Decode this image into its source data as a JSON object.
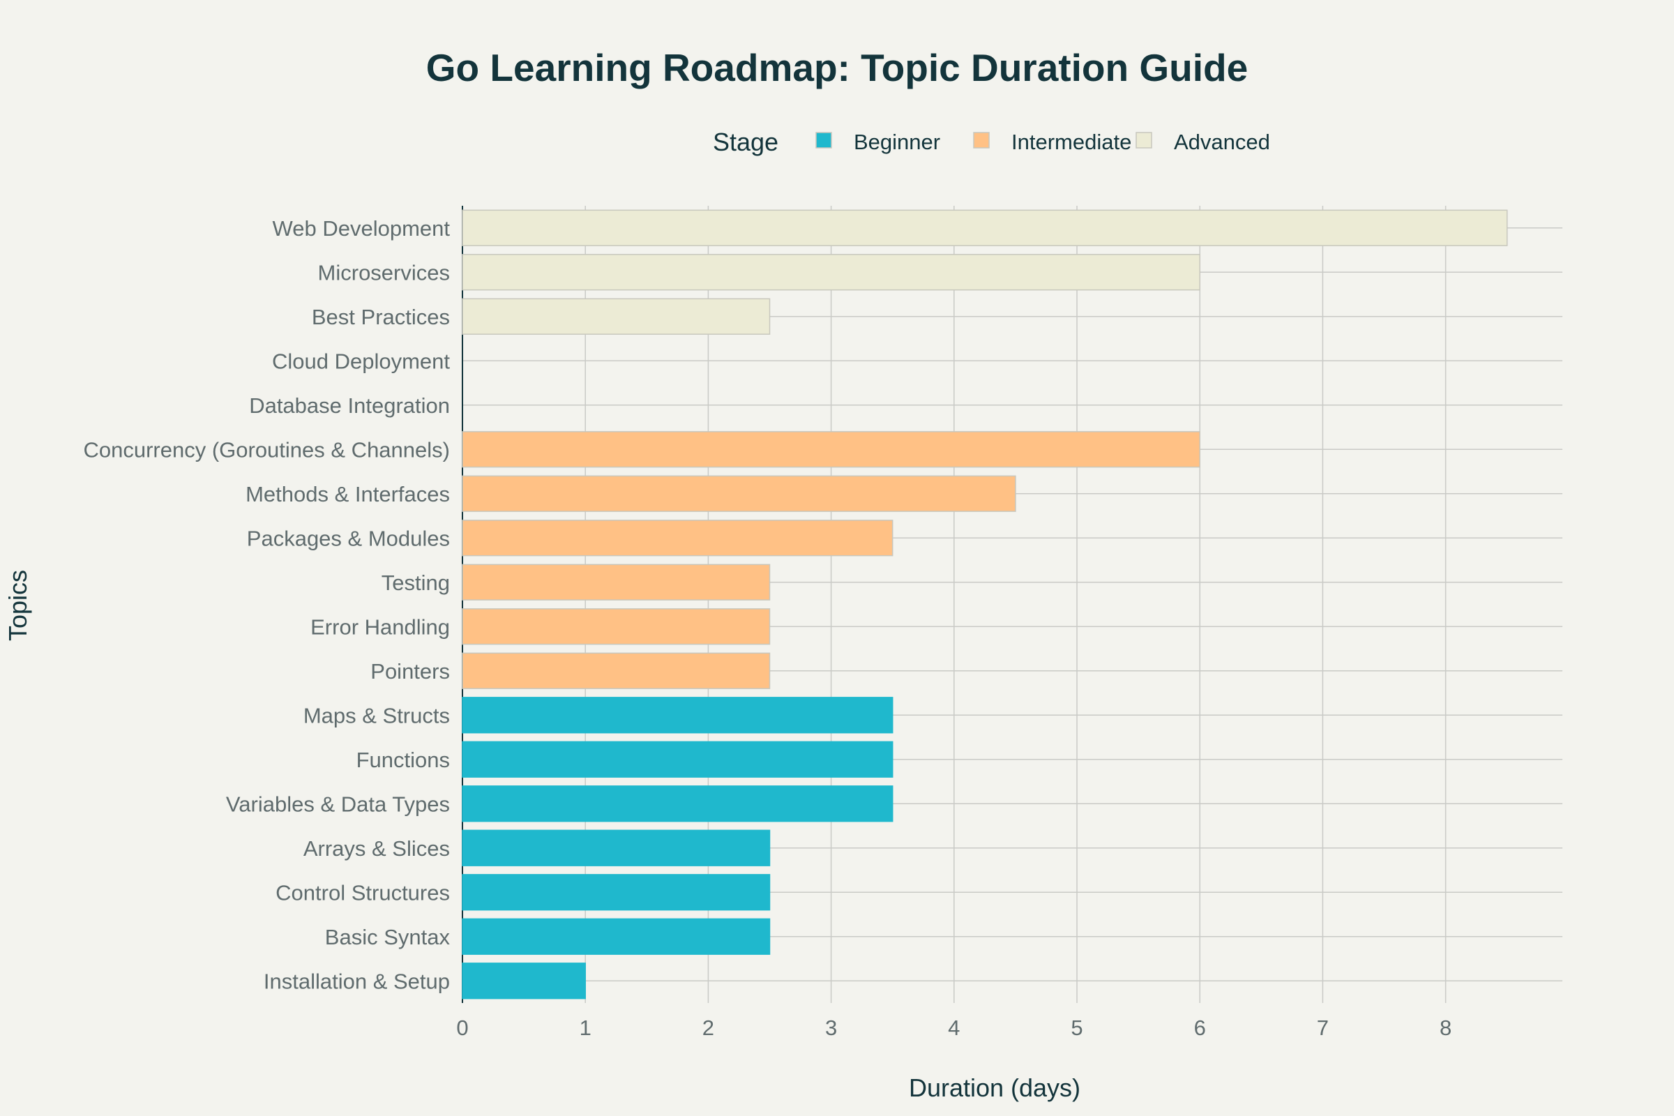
{
  "chart_data": {
    "type": "bar",
    "orientation": "horizontal",
    "title": "Go Learning Roadmap: Topic Duration Guide",
    "xlabel": "Duration (days)",
    "ylabel": "Topics",
    "xlim": [
      0,
      8.95
    ],
    "xticks": [
      0,
      1,
      2,
      3,
      4,
      5,
      6,
      7,
      8
    ],
    "grid": true,
    "legend": {
      "title": "Stage",
      "placement": "top-center",
      "entries": [
        "Beginner",
        "Intermediate",
        "Advanced"
      ]
    },
    "categories": [
      "Installation & Setup",
      "Basic Syntax",
      "Control Structures",
      "Arrays & Slices",
      "Variables & Data Types",
      "Functions",
      "Maps & Structs",
      "Pointers",
      "Error Handling",
      "Testing",
      "Packages & Modules",
      "Methods & Interfaces",
      "Concurrency (Goroutines & Channels)",
      "Database Integration",
      "Cloud Deployment",
      "Best Practices",
      "Microservices",
      "Web Development"
    ],
    "series": [
      {
        "name": "Beginner",
        "color": "#1fb8cd",
        "values": [
          1,
          2.5,
          2.5,
          2.5,
          3.5,
          3.5,
          3.5,
          null,
          null,
          null,
          null,
          null,
          null,
          null,
          null,
          null,
          null,
          null
        ]
      },
      {
        "name": "Intermediate",
        "color": "#ffc185",
        "values": [
          null,
          null,
          null,
          null,
          null,
          null,
          null,
          2.5,
          2.5,
          2.5,
          3.5,
          4.5,
          6,
          null,
          null,
          null,
          null,
          null
        ]
      },
      {
        "name": "Advanced",
        "color": "#eceBd5",
        "values": [
          null,
          null,
          null,
          null,
          null,
          null,
          null,
          null,
          null,
          null,
          null,
          null,
          null,
          0,
          0,
          2.5,
          6,
          8.5
        ]
      }
    ]
  }
}
